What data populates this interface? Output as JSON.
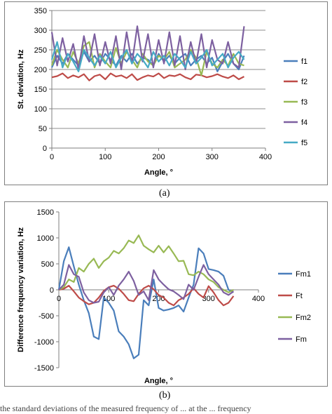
{
  "chart_data": [
    {
      "type": "line",
      "xlabel": "Angle, °",
      "ylabel": "St. deviation, Hz",
      "xlim": [
        0,
        400
      ],
      "ylim": [
        0,
        350
      ],
      "xticks": [
        0,
        100,
        200,
        300,
        400
      ],
      "yticks": [
        0,
        50,
        100,
        150,
        200,
        250,
        300,
        350
      ],
      "grid": "horizontal",
      "legend": "right",
      "x": [
        0,
        10,
        20,
        30,
        40,
        50,
        60,
        70,
        80,
        90,
        100,
        110,
        120,
        130,
        140,
        150,
        160,
        170,
        180,
        190,
        200,
        210,
        220,
        230,
        240,
        250,
        260,
        270,
        280,
        290,
        300,
        310,
        320,
        330,
        340,
        350,
        360
      ],
      "series": [
        {
          "name": "f1",
          "color": "#4a7ebb",
          "values": [
            205,
            235,
            215,
            240,
            225,
            210,
            245,
            220,
            235,
            215,
            240,
            225,
            210,
            235,
            220,
            240,
            215,
            230,
            225,
            210,
            240,
            220,
            235,
            215,
            230,
            240,
            210,
            225,
            235,
            215,
            230,
            195,
            220,
            240,
            215,
            200,
            235
          ]
        },
        {
          "name": "f2",
          "color": "#be4b48",
          "values": [
            180,
            183,
            190,
            178,
            185,
            180,
            188,
            172,
            183,
            187,
            175,
            190,
            182,
            185,
            178,
            188,
            173,
            180,
            185,
            182,
            190,
            178,
            185,
            183,
            188,
            180,
            175,
            187,
            185,
            180,
            183,
            188,
            182,
            178,
            185,
            175,
            182
          ]
        },
        {
          "name": "f3",
          "color": "#98b954",
          "values": [
            210,
            250,
            225,
            205,
            245,
            215,
            260,
            270,
            205,
            240,
            220,
            205,
            255,
            215,
            245,
            225,
            205,
            240,
            220,
            210,
            235,
            225,
            245,
            205,
            215,
            225,
            250,
            230,
            185,
            245,
            215,
            205,
            225,
            210,
            240,
            215,
            210
          ]
        },
        {
          "name": "f4",
          "color": "#7d60a0",
          "values": [
            295,
            210,
            280,
            220,
            265,
            200,
            285,
            220,
            290,
            210,
            270,
            215,
            285,
            200,
            295,
            215,
            310,
            220,
            290,
            205,
            275,
            215,
            295,
            210,
            285,
            200,
            270,
            215,
            290,
            205,
            275,
            225,
            215,
            270,
            215,
            205,
            310
          ]
        },
        {
          "name": "f5",
          "color": "#46aac5",
          "values": [
            225,
            270,
            205,
            240,
            220,
            195,
            250,
            230,
            210,
            235,
            215,
            245,
            205,
            230,
            250,
            215,
            240,
            225,
            205,
            245,
            220,
            235,
            210,
            240,
            225,
            205,
            245,
            215,
            230,
            250,
            210,
            225,
            240,
            205,
            230,
            245,
            225
          ]
        }
      ]
    },
    {
      "type": "line",
      "xlabel": "Angle, °",
      "ylabel": "Difference frequency variation, Hz",
      "xlim": [
        0,
        400
      ],
      "ylim": [
        -1500,
        1500
      ],
      "xticks": [
        0,
        100,
        200,
        300,
        400
      ],
      "yticks": [
        -1500,
        -1000,
        -500,
        0,
        500,
        1000,
        1500
      ],
      "grid": "none",
      "legend": "right",
      "x": [
        0,
        10,
        20,
        30,
        40,
        50,
        60,
        70,
        80,
        90,
        100,
        110,
        120,
        130,
        140,
        150,
        160,
        170,
        180,
        190,
        200,
        210,
        220,
        230,
        240,
        250,
        260,
        270,
        280,
        290,
        300,
        310,
        320,
        330,
        340,
        350
      ],
      "series": [
        {
          "name": "Fm1",
          "color": "#4a7ebb",
          "values": [
            0,
            550,
            820,
            450,
            100,
            -200,
            -450,
            -900,
            -950,
            -150,
            -250,
            -400,
            -800,
            -900,
            -1050,
            -1320,
            -1250,
            -200,
            -300,
            200,
            -350,
            -400,
            -380,
            -350,
            -300,
            -420,
            -150,
            100,
            800,
            700,
            400,
            380,
            350,
            270,
            0,
            -50
          ]
        },
        {
          "name": "Ft",
          "color": "#be4b48",
          "values": [
            0,
            20,
            80,
            -30,
            -150,
            -220,
            -280,
            -250,
            -150,
            -20,
            50,
            80,
            20,
            -80,
            -200,
            -220,
            -80,
            30,
            80,
            10,
            -100,
            -150,
            -250,
            -300,
            -200,
            -150,
            -80,
            30,
            -80,
            -150,
            70,
            -50,
            -200,
            -300,
            -250,
            -120
          ]
        },
        {
          "name": "Fm2",
          "color": "#98b954",
          "values": [
            0,
            50,
            200,
            150,
            420,
            350,
            500,
            600,
            420,
            550,
            620,
            750,
            700,
            800,
            950,
            900,
            1050,
            850,
            780,
            720,
            850,
            720,
            840,
            700,
            550,
            560,
            300,
            280,
            350,
            300,
            200,
            150,
            50,
            0,
            -50,
            0
          ]
        },
        {
          "name": "Fm",
          "color": "#7d60a0",
          "values": [
            0,
            100,
            480,
            300,
            250,
            -50,
            -200,
            -250,
            -230,
            -50,
            50,
            -100,
            80,
            200,
            350,
            170,
            -100,
            -30,
            -200,
            380,
            200,
            100,
            10,
            -30,
            -100,
            -180,
            100,
            0,
            250,
            480,
            300,
            200,
            100,
            -50,
            -100,
            -30
          ]
        }
      ]
    }
  ],
  "captions": {
    "a": "(a)",
    "b": "(b)"
  },
  "footer_text": "the standard deviations of the measured frequency of ... at the ... frequency"
}
